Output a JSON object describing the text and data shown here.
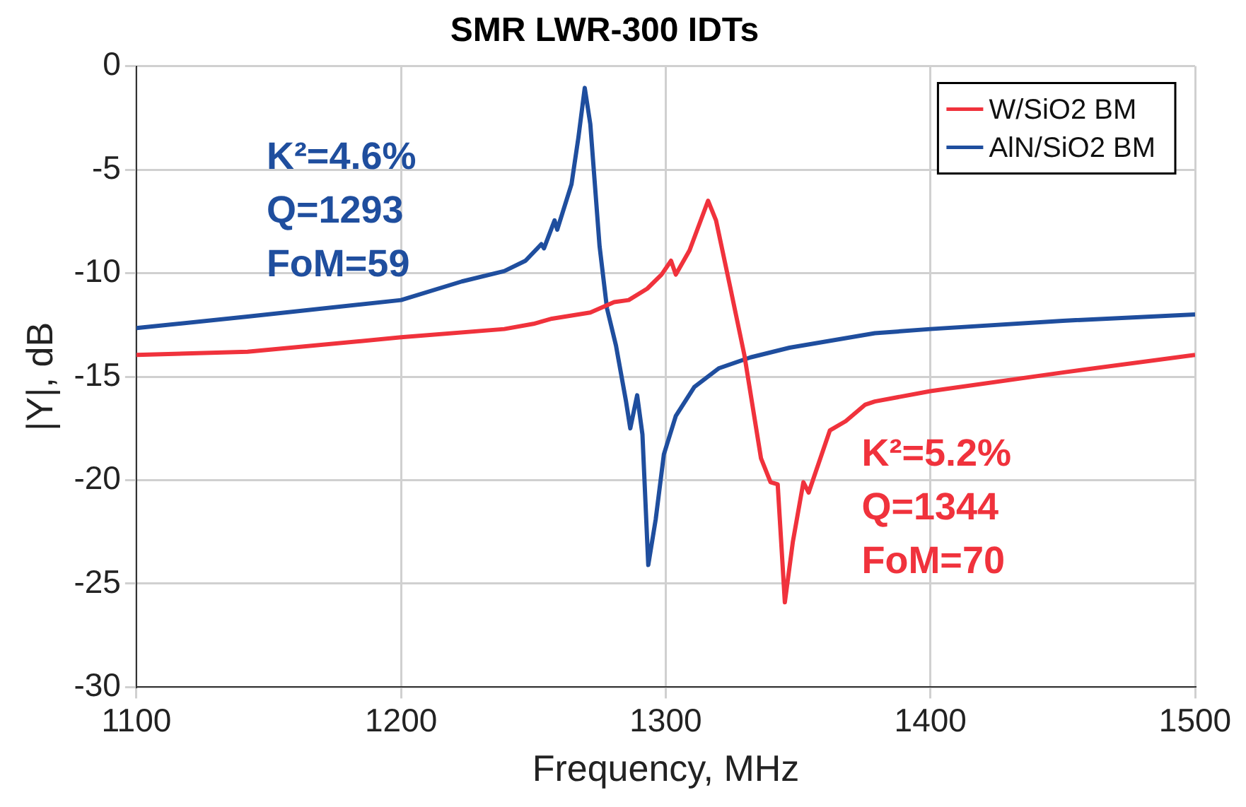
{
  "chart_data": {
    "type": "line",
    "title": "SMR LWR-300 IDTs",
    "xlabel": "Frequency, MHz",
    "ylabel": "|Y|, dB",
    "xlim": [
      1100,
      1500
    ],
    "xticks": [
      1100,
      1200,
      1300,
      1400,
      1500
    ],
    "ylim": [
      -30,
      0
    ],
    "yticks": [
      -30,
      -25,
      -20,
      -15,
      -10,
      -5,
      0
    ],
    "grid": true,
    "legend": "top right",
    "marker": "none",
    "line_style": "solid",
    "series": [
      {
        "name": "W/SiO2 BM",
        "color": "#f0323c",
        "x": [
          1100,
          1142,
          1200,
          1239,
          1250,
          1257,
          1271.5,
          1280.5,
          1286,
          1293,
          1298.4,
          1302,
          1303.8,
          1309,
          1316,
          1319,
          1324.4,
          1329.7,
          1336,
          1339.6,
          1342.3,
          1345,
          1348,
          1352,
          1354,
          1362,
          1368,
          1375.4,
          1379,
          1400,
          1450,
          1500
        ],
        "values": [
          -13.95,
          -13.8,
          -13.1,
          -12.7,
          -12.45,
          -12.2,
          -11.9,
          -11.4,
          -11.3,
          -10.75,
          -10.07,
          -9.4,
          -10.07,
          -8.9,
          -6.5,
          -7.45,
          -10.7,
          -13.95,
          -18.95,
          -20.1,
          -20.2,
          -25.9,
          -23,
          -20.1,
          -20.6,
          -17.6,
          -17.15,
          -16.35,
          -16.2,
          -15.7,
          -14.8,
          -13.95
        ]
      },
      {
        "name": "AlN/SiO2 BM",
        "color": "#1f4e9e",
        "x": [
          1100,
          1142,
          1200,
          1223,
          1239,
          1247,
          1253,
          1254,
          1258,
          1259,
          1264.4,
          1267,
          1269.4,
          1271.5,
          1275,
          1277.8,
          1281.2,
          1285,
          1286.6,
          1289.2,
          1291.2,
          1293.4,
          1296.2,
          1299.3,
          1303.8,
          1310.8,
          1320,
          1332,
          1346.8,
          1379,
          1400,
          1450,
          1500
        ],
        "values": [
          -12.65,
          -12.1,
          -11.3,
          -10.4,
          -9.9,
          -9.4,
          -8.6,
          -8.8,
          -7.45,
          -7.9,
          -5.7,
          -3.45,
          -1.05,
          -2.8,
          -8.7,
          -11.7,
          -13.5,
          -16.2,
          -17.5,
          -15.9,
          -17.8,
          -24.1,
          -21.9,
          -18.75,
          -16.9,
          -15.5,
          -14.6,
          -14.07,
          -13.6,
          -12.9,
          -12.7,
          -12.3,
          -12.0
        ]
      }
    ],
    "annotations": [
      "K²=4.6%",
      "Q=1293",
      "FoM=59",
      "K²=5.2%",
      "Q=1344",
      "FoM=70"
    ]
  }
}
